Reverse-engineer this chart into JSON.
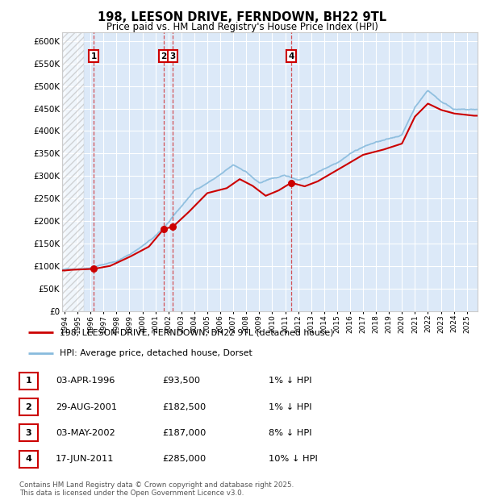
{
  "title": "198, LEESON DRIVE, FERNDOWN, BH22 9TL",
  "subtitle": "Price paid vs. HM Land Registry's House Price Index (HPI)",
  "background_color": "#dce9f8",
  "ylim": [
    0,
    620000
  ],
  "yticks": [
    0,
    50000,
    100000,
    150000,
    200000,
    250000,
    300000,
    350000,
    400000,
    450000,
    500000,
    550000,
    600000
  ],
  "ytick_labels": [
    "£0",
    "£50K",
    "£100K",
    "£150K",
    "£200K",
    "£250K",
    "£300K",
    "£350K",
    "£400K",
    "£450K",
    "£500K",
    "£550K",
    "£600K"
  ],
  "hatch_end": 1995.5,
  "xmin": 1993.8,
  "xmax": 2025.8,
  "sale_dates": [
    1996.25,
    2001.65,
    2002.34,
    2011.46
  ],
  "sale_prices": [
    93500,
    182500,
    187000,
    285000
  ],
  "sale_labels": [
    "1",
    "2",
    "3",
    "4"
  ],
  "red_color": "#cc0000",
  "blue_color": "#88bbdd",
  "legend_entries": [
    "198, LEESON DRIVE, FERNDOWN, BH22 9TL (detached house)",
    "HPI: Average price, detached house, Dorset"
  ],
  "table_rows": [
    [
      "1",
      "03-APR-1996",
      "£93,500",
      "1% ↓ HPI"
    ],
    [
      "2",
      "29-AUG-2001",
      "£182,500",
      "1% ↓ HPI"
    ],
    [
      "3",
      "03-MAY-2002",
      "£187,000",
      "8% ↓ HPI"
    ],
    [
      "4",
      "17-JUN-2011",
      "£285,000",
      "10% ↓ HPI"
    ]
  ],
  "footnote": "Contains HM Land Registry data © Crown copyright and database right 2025.\nThis data is licensed under the Open Government Licence v3.0.",
  "hpi_years": [
    1994,
    1995,
    1996,
    1997,
    1998,
    1999,
    2000,
    2001,
    2002,
    2003,
    2004,
    2005,
    2006,
    2007,
    2008,
    2009,
    2010,
    2011,
    2012,
    2013,
    2014,
    2015,
    2016,
    2017,
    2018,
    2019,
    2020,
    2021,
    2022,
    2023,
    2024,
    2025
  ],
  "hpi_vals": [
    92000,
    95000,
    99000,
    106000,
    114000,
    128000,
    148000,
    168000,
    198000,
    232000,
    267000,
    285000,
    303000,
    322000,
    308000,
    281000,
    292000,
    296000,
    288000,
    298000,
    313000,
    329000,
    351000,
    366000,
    376000,
    381000,
    391000,
    453000,
    491000,
    467000,
    451000,
    448000
  ],
  "red_years": [
    1994.0,
    1994.5,
    1996.25,
    1997.5,
    1999.0,
    2000.5,
    2001.65,
    2002.34,
    2003.5,
    2005.0,
    2006.5,
    2007.5,
    2008.5,
    2009.5,
    2010.5,
    2011.46,
    2012.5,
    2013.5,
    2015.0,
    2017.0,
    2018.5,
    2020.0,
    2021.0,
    2022.0,
    2023.0,
    2024.0,
    2025.5
  ],
  "red_vals": [
    90000,
    91500,
    93500,
    100000,
    120000,
    143000,
    182500,
    187000,
    218000,
    262000,
    273000,
    293000,
    278000,
    256000,
    268000,
    285000,
    277000,
    288000,
    313000,
    347000,
    358000,
    372000,
    432000,
    461000,
    447000,
    439000,
    434000
  ]
}
